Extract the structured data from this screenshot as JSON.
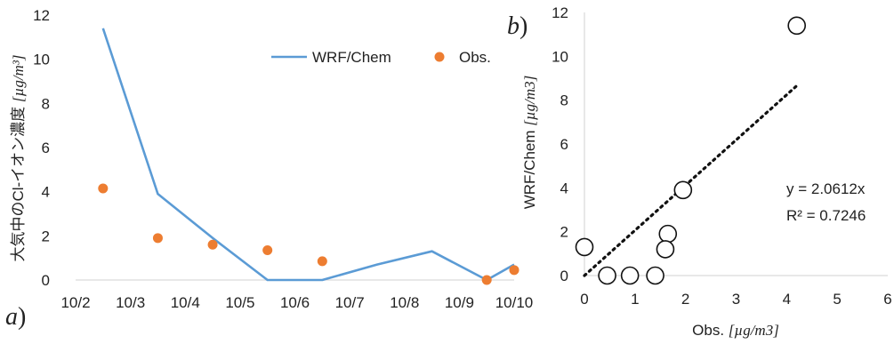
{
  "chart_data": [
    {
      "type": "line",
      "panel_label": "a",
      "x_tick_labels": [
        "10/2",
        "10/3",
        "10/4",
        "10/5",
        "10/6",
        "10/7",
        "10/8",
        "10/9",
        "10/10"
      ],
      "y_ticks": [
        0,
        2,
        4,
        6,
        8,
        10,
        12
      ],
      "ylim": [
        0,
        12
      ],
      "ylabel_text": "大気中のCl-イオン濃度 ",
      "ylabel_unit": "[µg/m³]",
      "legend_position": "top-right",
      "series": [
        {
          "name": "WRF/Chem",
          "kind": "line",
          "color": "#5b9bd5",
          "x": [
            0.5,
            1.5,
            2.5,
            3.5,
            4.5,
            5.5,
            6.5,
            7.5,
            8.0
          ],
          "values": [
            11.4,
            3.9,
            1.9,
            0,
            0,
            0.7,
            1.3,
            0,
            0.7
          ]
        },
        {
          "name": "Obs.",
          "kind": "scatter",
          "color": "#ed7d31",
          "x": [
            0.5,
            1.5,
            2.5,
            3.5,
            4.5,
            7.5,
            8.0
          ],
          "values": [
            4.15,
            1.9,
            1.6,
            1.35,
            0.85,
            0.0,
            0.45
          ]
        }
      ]
    },
    {
      "type": "scatter",
      "panel_label": "b",
      "x_ticks": [
        0,
        1,
        2,
        3,
        4,
        5,
        6
      ],
      "y_ticks": [
        0,
        2,
        4,
        6,
        8,
        10,
        12
      ],
      "xlim": [
        0,
        6
      ],
      "ylim": [
        0,
        12
      ],
      "xlabel_text": "Obs. ",
      "xlabel_unit": "[µg/m3]",
      "ylabel_text": "WRF/Chem ",
      "ylabel_unit": "[µg/m3]",
      "points": {
        "x": [
          0.0,
          0.45,
          0.9,
          1.4,
          1.65,
          1.6,
          1.95,
          4.2
        ],
        "y": [
          1.3,
          0.0,
          0.0,
          0.0,
          1.9,
          1.2,
          3.9,
          11.4
        ]
      },
      "trendline": {
        "slope": 2.0612,
        "x_range": [
          0,
          4.2
        ],
        "style": "dotted"
      },
      "equation": "y = 2.0612x",
      "r_squared": "R² = 0.7246"
    }
  ]
}
